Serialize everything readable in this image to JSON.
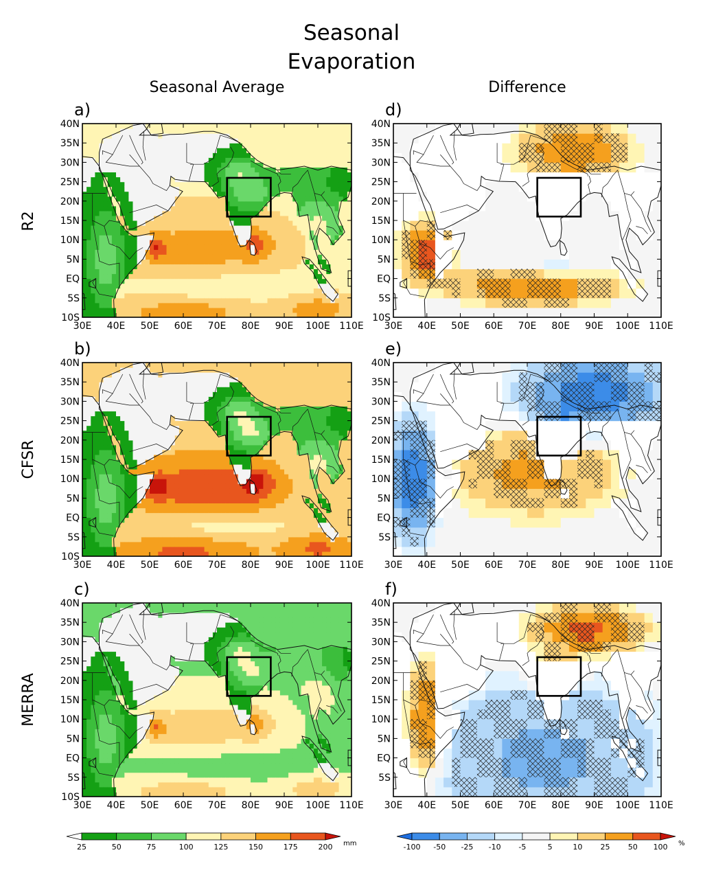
{
  "title_lines": [
    "Seasonal",
    "Evaporation"
  ],
  "column_titles": [
    "Seasonal Average",
    "Difference"
  ],
  "row_labels": [
    "R2",
    "CFSR",
    "MERRA"
  ],
  "panels": [
    {
      "letter": "a)",
      "kind": "average"
    },
    {
      "letter": "b)",
      "kind": "average"
    },
    {
      "letter": "c)",
      "kind": "average"
    },
    {
      "letter": "d)",
      "kind": "difference"
    },
    {
      "letter": "e)",
      "kind": "difference"
    },
    {
      "letter": "f)",
      "kind": "difference"
    }
  ],
  "lat_ticks_full": [
    "40N",
    "35N",
    "30N",
    "25N",
    "20N",
    "15N",
    "10N",
    "5N",
    "EQ",
    "5S",
    "10S"
  ],
  "lat_ticks_diff_bottom": [
    "40N",
    "35N",
    "30N",
    "25N",
    "20N",
    "15N",
    "10N",
    "5N",
    "EQ",
    "5S"
  ],
  "lon_ticks": [
    "30E",
    "40E",
    "50E",
    "60E",
    "70E",
    "80E",
    "90E",
    "100E",
    "110E"
  ],
  "box_region": {
    "lon": [
      73,
      86
    ],
    "lat": [
      16,
      26
    ]
  },
  "colorbars": {
    "average": {
      "labels": [
        "25",
        "50",
        "75",
        "100",
        "125",
        "150",
        "175",
        "200"
      ],
      "unit": "mm",
      "colors": [
        "#ffffff",
        "#14a014",
        "#3cbe3c",
        "#6ad86a",
        "#fff5b4",
        "#fcd27a",
        "#f5a01e",
        "#e8561e",
        "#c8140a"
      ]
    },
    "difference": {
      "labels": [
        "-100",
        "-50",
        "-25",
        "-10",
        "-5",
        "5",
        "10",
        "25",
        "50",
        "100"
      ],
      "unit": "%",
      "colors": [
        "#1e6ee0",
        "#3c8ce8",
        "#78b4f0",
        "#b4d8f8",
        "#e0f2ff",
        "#f5f5f5",
        "#fff5b4",
        "#fcd27a",
        "#f5a01e",
        "#e8561e",
        "#c8140a"
      ]
    }
  }
}
